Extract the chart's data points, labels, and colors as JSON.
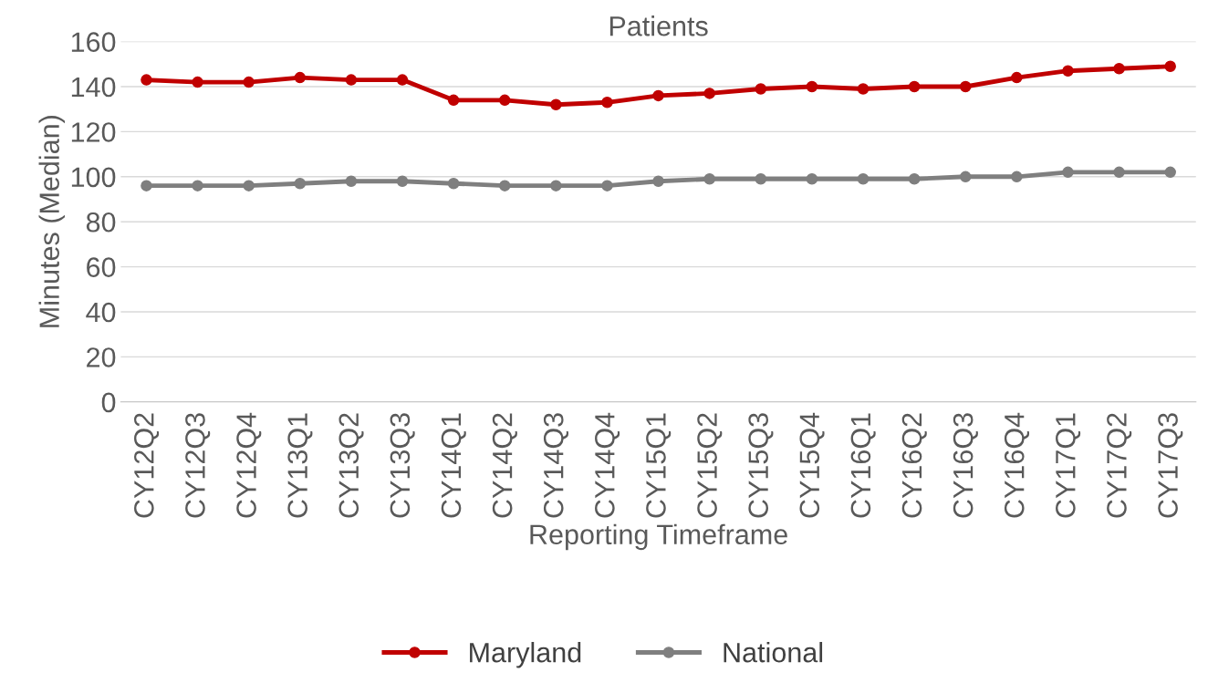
{
  "chart_data": {
    "type": "line",
    "title": "Patients",
    "xlabel": "Reporting Timeframe",
    "ylabel": "Minutes (Median)",
    "categories": [
      "CY12Q2",
      "CY12Q3",
      "CY12Q4",
      "CY13Q1",
      "CY13Q2",
      "CY13Q3",
      "CY14Q1",
      "CY14Q2",
      "CY14Q3",
      "CY14Q4",
      "CY15Q1",
      "CY15Q2",
      "CY15Q3",
      "CY15Q4",
      "CY16Q1",
      "CY16Q2",
      "CY16Q3",
      "CY16Q4",
      "CY17Q1",
      "CY17Q2",
      "CY17Q3"
    ],
    "series": [
      {
        "name": "Maryland",
        "color": "#c00000",
        "values": [
          143,
          142,
          142,
          144,
          143,
          143,
          134,
          134,
          132,
          133,
          136,
          137,
          139,
          140,
          139,
          140,
          140,
          144,
          147,
          148,
          149
        ]
      },
      {
        "name": "National",
        "color": "#7f7f7f",
        "values": [
          96,
          96,
          96,
          97,
          98,
          98,
          97,
          96,
          96,
          96,
          98,
          99,
          99,
          99,
          99,
          99,
          100,
          100,
          102,
          102,
          102
        ]
      }
    ],
    "ylim": [
      0,
      160
    ],
    "yticks": [
      0,
      20,
      40,
      60,
      80,
      100,
      120,
      140,
      160
    ],
    "grid": "y",
    "legend": "bottom",
    "marker": "circle",
    "line_style": "solid"
  }
}
